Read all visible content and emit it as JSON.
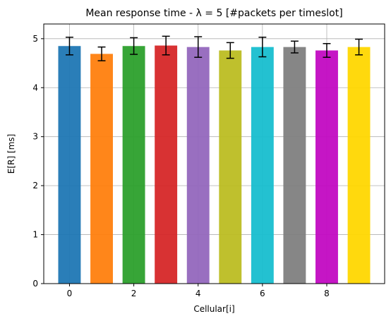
{
  "chart_data": {
    "type": "bar",
    "title": "Mean response time - λ = 5 [#packets per timeslot]",
    "xlabel": "Cellular[i]",
    "ylabel": "E[R] [ms]",
    "categories": [
      0,
      1,
      2,
      3,
      4,
      5,
      6,
      7,
      8,
      9
    ],
    "values": [
      4.85,
      4.69,
      4.85,
      4.86,
      4.83,
      4.76,
      4.83,
      4.83,
      4.76,
      4.83
    ],
    "errors": [
      0.18,
      0.14,
      0.17,
      0.19,
      0.21,
      0.16,
      0.2,
      0.12,
      0.14,
      0.16
    ],
    "colors": [
      "#1f77b4",
      "#ff7f0e",
      "#2ca02c",
      "#d62728",
      "#9467bd",
      "#bcbd22",
      "#17becf",
      "#7f7f7f",
      "#c20ac2",
      "#ffd700"
    ],
    "xlim": [
      -0.8,
      9.8
    ],
    "ylim": [
      0,
      5.3
    ],
    "xticks": [
      0,
      2,
      4,
      6,
      8
    ],
    "yticks": [
      0,
      1,
      2,
      3,
      4,
      5
    ],
    "grid": true
  }
}
